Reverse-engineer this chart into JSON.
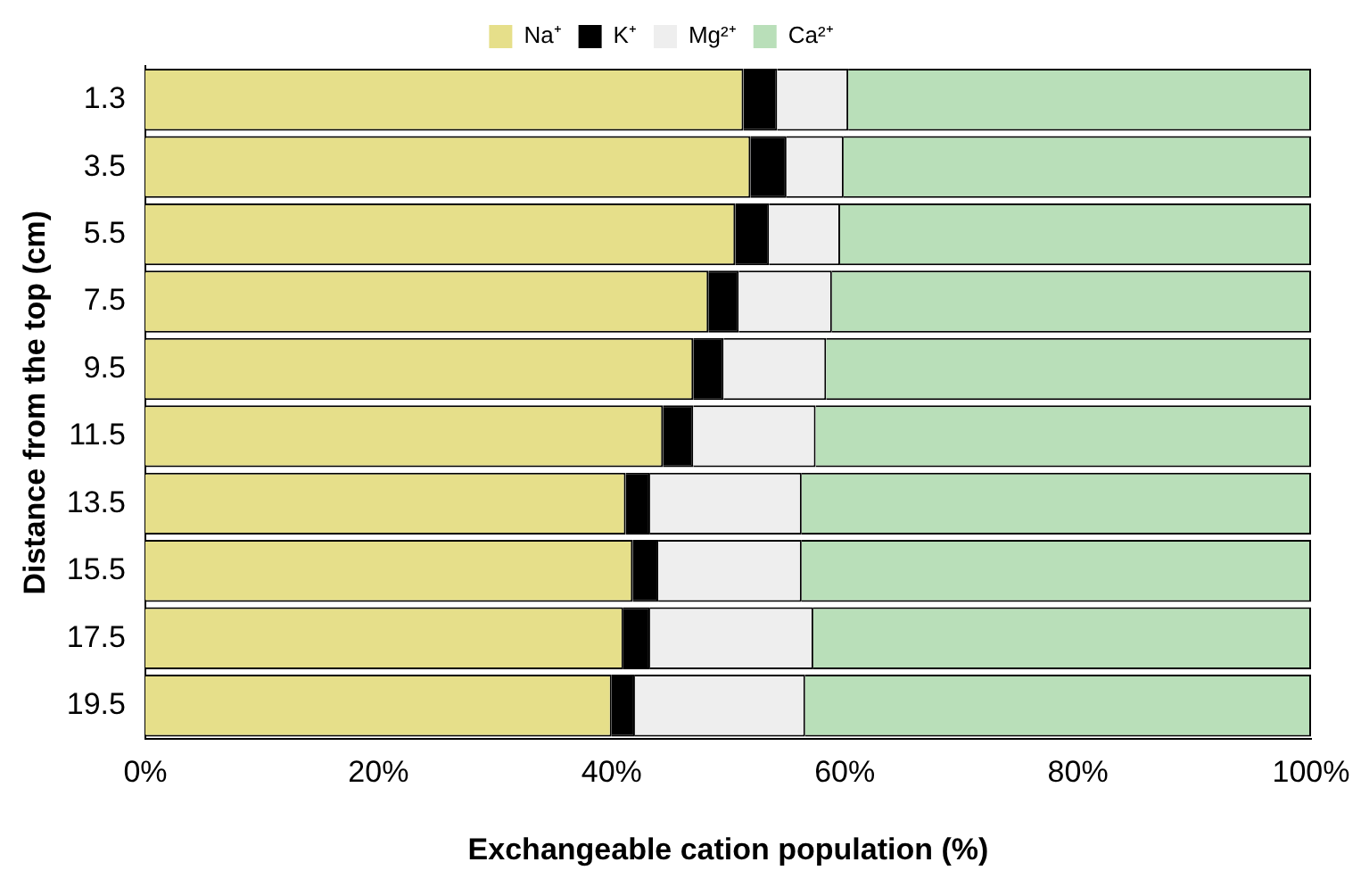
{
  "chart_data": {
    "type": "bar",
    "orientation": "horizontal",
    "stacked": true,
    "xlabel": "Exchangeable cation population (%)",
    "ylabel": "Distance from the top (cm)",
    "categories": [
      "1.3",
      "3.5",
      "5.5",
      "7.5",
      "9.5",
      "11.5",
      "13.5",
      "15.5",
      "17.5",
      "19.5"
    ],
    "series": [
      {
        "name": "Na⁺",
        "color": "#e6df8a",
        "values": [
          51.3,
          51.9,
          50.6,
          48.3,
          47.0,
          44.4,
          41.2,
          41.8,
          41.0,
          40.0
        ]
      },
      {
        "name": "K⁺",
        "color": "#000000",
        "values": [
          2.9,
          3.1,
          2.9,
          2.6,
          2.6,
          2.6,
          2.1,
          2.2,
          2.3,
          2.0
        ]
      },
      {
        "name": "Mg²⁺",
        "color": "#eeeeee",
        "values": [
          6.1,
          4.9,
          6.1,
          8.0,
          8.8,
          10.5,
          13.0,
          12.3,
          14.0,
          14.6
        ]
      },
      {
        "name": "Ca²⁺",
        "color": "#b9dfb9",
        "values": [
          39.7,
          40.1,
          40.4,
          41.1,
          41.6,
          42.5,
          43.7,
          43.7,
          42.7,
          43.4
        ]
      }
    ],
    "xlim": [
      0,
      100
    ],
    "xticks": [
      {
        "value": 0,
        "label": "0%"
      },
      {
        "value": 20,
        "label": "20%"
      },
      {
        "value": 40,
        "label": "40%"
      },
      {
        "value": 60,
        "label": "60%"
      },
      {
        "value": 80,
        "label": "80%"
      },
      {
        "value": 100,
        "label": "100%"
      }
    ],
    "grid": false,
    "legend": "top"
  }
}
